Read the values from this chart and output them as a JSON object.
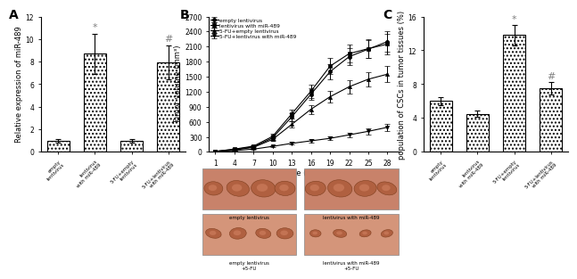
{
  "panel_A": {
    "categories": [
      "empty lentivirus",
      "lentivirus with miR-489",
      "5-FU+empty lentivirus",
      "5-FU+lentivirus with miR-489"
    ],
    "values": [
      1.0,
      8.7,
      1.0,
      7.9
    ],
    "errors": [
      0.15,
      1.8,
      0.15,
      1.5
    ],
    "ylabel": "Relative expression of miR-489",
    "ylim": [
      0,
      12
    ],
    "yticks": [
      0,
      2,
      4,
      6,
      8,
      10,
      12
    ],
    "sig_markers": [
      "",
      "*",
      "",
      "#"
    ],
    "title": "A"
  },
  "panel_B": {
    "days": [
      1,
      4,
      7,
      10,
      13,
      16,
      19,
      22,
      25,
      28
    ],
    "series": {
      "empty lentivirus": [
        10,
        50,
        100,
        280,
        700,
        1150,
        1600,
        1900,
        2050,
        2200
      ],
      "lentivirus with miR-489": [
        10,
        55,
        115,
        310,
        760,
        1210,
        1710,
        1960,
        2060,
        2150
      ],
      "5-FU+empty lentivirus": [
        10,
        40,
        90,
        250,
        550,
        850,
        1100,
        1300,
        1450,
        1550
      ],
      "5-FU+lentivirus with miR-489": [
        10,
        25,
        55,
        110,
        170,
        220,
        270,
        340,
        410,
        490
      ]
    },
    "errors": {
      "empty lentivirus": [
        5,
        15,
        25,
        40,
        80,
        120,
        150,
        170,
        180,
        200
      ],
      "lentivirus with miR-489": [
        5,
        15,
        25,
        45,
        90,
        130,
        160,
        180,
        190,
        200
      ],
      "5-FU+empty lentivirus": [
        5,
        12,
        20,
        35,
        60,
        90,
        110,
        130,
        140,
        155
      ],
      "5-FU+lentivirus with miR-489": [
        5,
        8,
        12,
        18,
        28,
        32,
        38,
        48,
        58,
        75
      ]
    },
    "markers": {
      "empty lentivirus": "o",
      "lentivirus with miR-489": "s",
      "5-FU+empty lentivirus": "^",
      "5-FU+lentivirus with miR-489": "v"
    },
    "ylabel": "Tumor volume (mm³)",
    "xlabel": "Time (days)",
    "ylim": [
      0,
      2700
    ],
    "yticks": [
      0,
      300,
      600,
      900,
      1200,
      1500,
      1800,
      2100,
      2400,
      2700
    ],
    "title": "B"
  },
  "panel_C": {
    "categories": [
      "empty lentivirus",
      "lentivirus with miR-489",
      "5-FU+empty lentivirus",
      "5-FU+lentivirus with miR-489"
    ],
    "values": [
      6.0,
      4.5,
      13.8,
      7.5
    ],
    "errors": [
      0.5,
      0.35,
      1.2,
      0.75
    ],
    "ylabel": "population of CSCs in tumor tissues (%)",
    "ylim": [
      0,
      16
    ],
    "yticks": [
      0,
      4,
      8,
      12,
      16
    ],
    "sig_markers": [
      "",
      "",
      "*",
      "#"
    ],
    "title": "C"
  },
  "hatch_pattern": "....",
  "bar_color": "white",
  "bar_edgecolor": "black",
  "font_size": 6.0,
  "label_font_size": 7,
  "tick_font_size": 5.5,
  "img_colors": {
    "top_left": "#c8826a",
    "top_right": "#c8826a",
    "bot_left": "#d4957a",
    "bot_right": "#d4957a"
  },
  "img_labels_top": [
    "empty lentivirus",
    "lentivirus with miR-489"
  ],
  "img_labels_bot": [
    "empty lentivirus\n+5-FU",
    "lentivirus with miR-489\n+5-FU"
  ]
}
